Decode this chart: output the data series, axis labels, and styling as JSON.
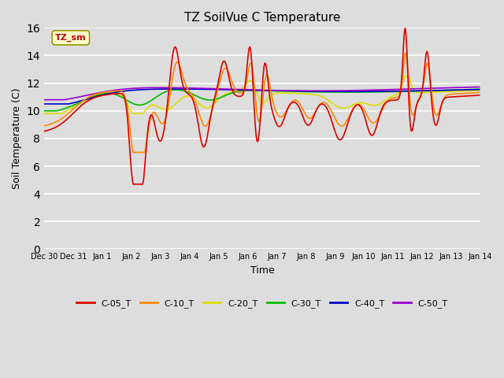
{
  "title": "TZ SoilVue C Temperature",
  "xlabel": "Time",
  "ylabel": "Soil Temperature (C)",
  "ylim": [
    0,
    16
  ],
  "yticks": [
    0,
    2,
    4,
    6,
    8,
    10,
    12,
    14,
    16
  ],
  "annotation_text": "TZ_sm",
  "annotation_color": "#cc0000",
  "annotation_bg": "#ffffcc",
  "annotation_edge": "#999900",
  "line_colors": {
    "C-05_T": "#dd0000",
    "C-10_T": "#ff8800",
    "C-20_T": "#dddd00",
    "C-30_T": "#00bb00",
    "C-40_T": "#0000cc",
    "C-50_T": "#9900cc"
  },
  "legend_labels": [
    "C-05_T",
    "C-10_T",
    "C-20_T",
    "C-30_T",
    "C-40_T",
    "C-50_T"
  ],
  "bg_color": "#dddddd",
  "plot_bg_color": "#dddddd",
  "grid_color": "white",
  "figsize": [
    6.4,
    4.8
  ],
  "dpi": 100
}
